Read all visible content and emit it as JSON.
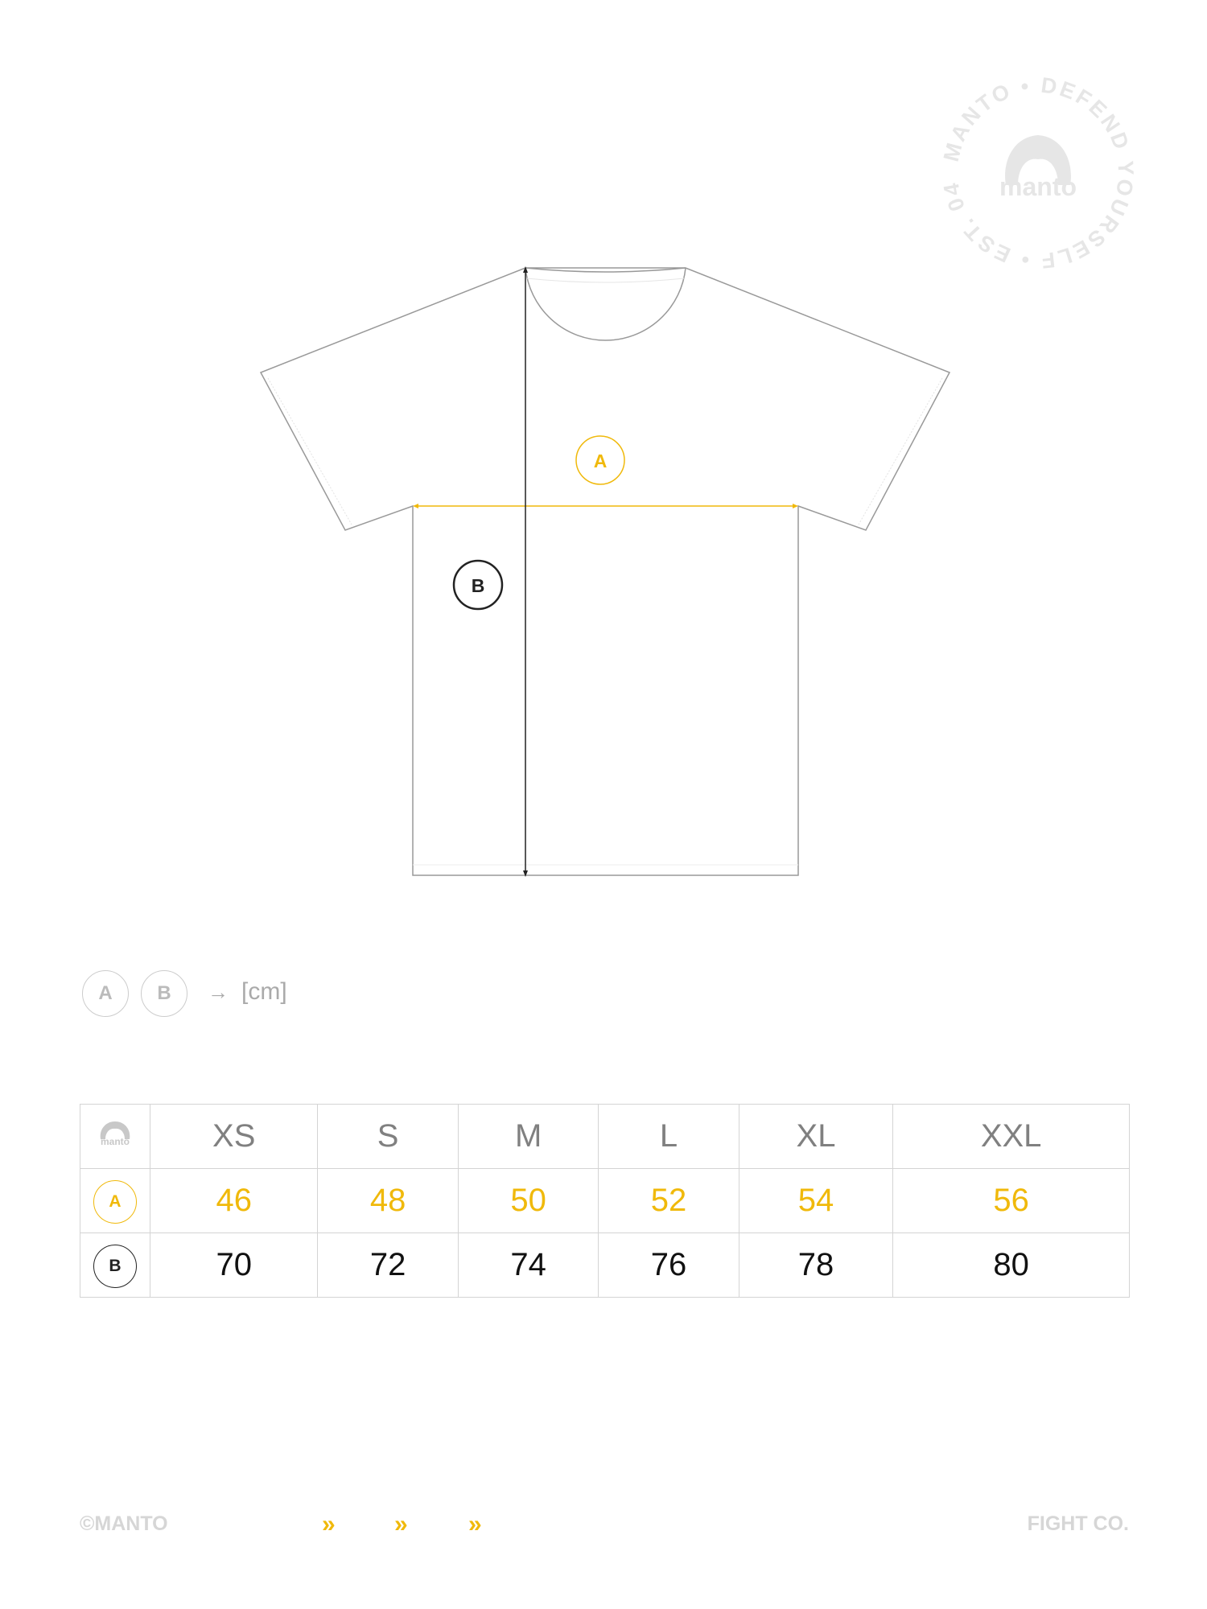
{
  "stamp": {
    "ring_text": "MANTO • DEFEND YOURSELF • EST. 04 •",
    "logo_text": "manto"
  },
  "diagram": {
    "label_a": "A",
    "label_b": "B",
    "colors": {
      "a": "#f0b90b",
      "b": "#222222",
      "outline": "#999999"
    }
  },
  "legend": {
    "a": "A",
    "b": "B",
    "arrow": "→",
    "unit": "[cm]"
  },
  "size_table": {
    "corner_logo": "manto",
    "sizes": [
      "XS",
      "S",
      "M",
      "L",
      "XL",
      "XXL"
    ],
    "rows": [
      {
        "label": "A",
        "values": [
          "46",
          "48",
          "50",
          "52",
          "54",
          "56"
        ]
      },
      {
        "label": "B",
        "values": [
          "70",
          "72",
          "74",
          "76",
          "78",
          "80"
        ]
      }
    ]
  },
  "footer": {
    "copyright": "©MANTO",
    "chevron": "»",
    "tagline": "FIGHT CO."
  }
}
